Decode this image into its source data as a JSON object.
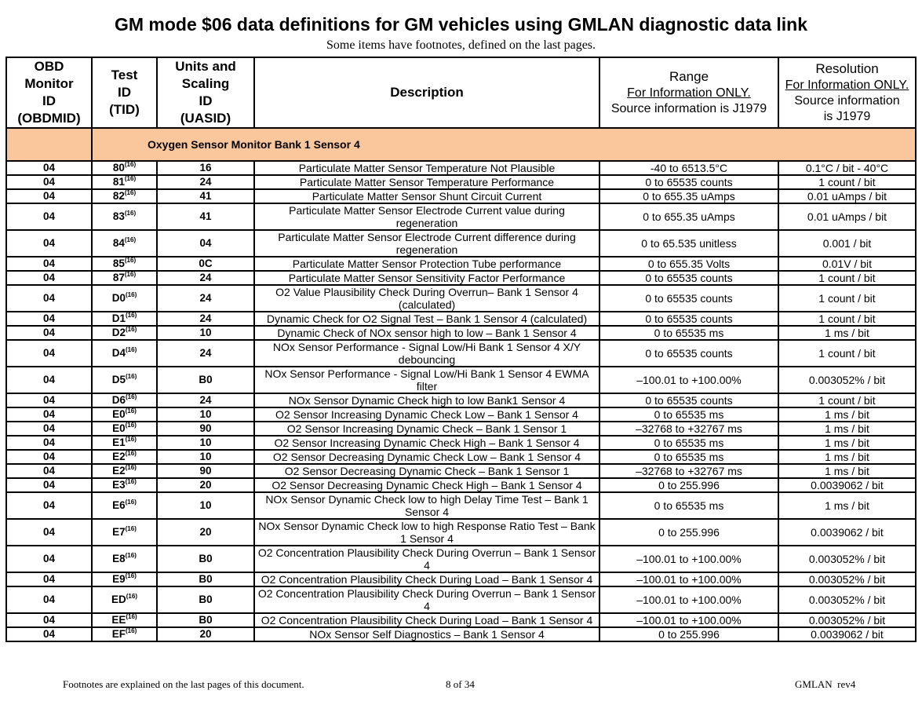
{
  "header": {
    "title": "GM mode $06 data definitions for GM vehicles using GMLAN diagnostic data link",
    "subtitle": "Some items have footnotes, defined on the last pages."
  },
  "table": {
    "columns": {
      "obdmid": [
        "OBD",
        "Monitor",
        "ID",
        "(OBDMID)"
      ],
      "tid": [
        "Test",
        "ID",
        "(TID)"
      ],
      "uasid": [
        "Units and",
        "Scaling",
        "ID",
        "(UASID)"
      ],
      "description": [
        "Description"
      ],
      "range": {
        "title": "Range",
        "note": "For Information ONLY.",
        "source": "Source information is J1979"
      },
      "resolution": {
        "title": "Resolution",
        "note": "For Information ONLY.",
        "source": "Source information is J1979"
      }
    },
    "section": "Oxygen Sensor Monitor Bank 1 Sensor 4",
    "rows": [
      [
        "04",
        "80",
        "(16)",
        "16",
        "Particulate Matter Sensor Temperature Not Plausible",
        "-40 to 6513.5°C",
        "0.1°C / bit - 40°C"
      ],
      [
        "04",
        "81",
        "(16)",
        "24",
        "Particulate Matter Sensor Temperature Performance",
        "0 to 65535 counts",
        "1 count / bit"
      ],
      [
        "04",
        "82",
        "(16)",
        "41",
        "Particulate Matter Sensor Shunt Circuit Current",
        "0 to 655.35 uAmps",
        "0.01 uAmps / bit"
      ],
      [
        "04",
        "83",
        "(16)",
        "41",
        "Particulate Matter Sensor Electrode Current value during regeneration",
        "0 to 655.35 uAmps",
        "0.01 uAmps / bit"
      ],
      [
        "04",
        "84",
        "(16)",
        "04",
        "Particulate Matter Sensor Electrode Current difference during regeneration",
        "0 to 65.535 unitless",
        "0.001 / bit"
      ],
      [
        "04",
        "85",
        "(16)",
        "0C",
        "Particulate Matter Sensor Protection Tube performance",
        "0 to 655.35 Volts",
        "0.01V / bit"
      ],
      [
        "04",
        "87",
        "(16)",
        "24",
        "Particulate Matter Sensor Sensitivity Factor Performance",
        "0 to 65535 counts",
        "1 count / bit"
      ],
      [
        "04",
        "D0",
        "(16)",
        "24",
        "O2 Value Plausibility Check During Overrun– Bank 1 Sensor 4 (calculated)",
        "0 to 65535 counts",
        "1 count / bit"
      ],
      [
        "04",
        "D1",
        "(16)",
        "24",
        "Dynamic Check for O2 Signal Test – Bank 1 Sensor 4 (calculated)",
        "0 to 65535 counts",
        "1 count / bit"
      ],
      [
        "04",
        "D2",
        "(16)",
        "10",
        "Dynamic Check of NOx sensor high to low – Bank 1 Sensor 4",
        "0 to 65535 ms",
        "1 ms / bit"
      ],
      [
        "04",
        "D4",
        "(16)",
        "24",
        "NOx Sensor Performance - Signal Low/Hi Bank 1 Sensor 4 X/Y debouncing",
        "0 to 65535 counts",
        "1 count / bit"
      ],
      [
        "04",
        "D5",
        "(16)",
        "B0",
        "NOx Sensor Performance - Signal Low/Hi Bank 1 Sensor 4 EWMA filter",
        "–100.01 to +100.00%",
        "0.003052% / bit"
      ],
      [
        "04",
        "D6",
        "(16)",
        "24",
        "NOx Sensor Dynamic Check high to low Bank1 Sensor 4",
        "0 to 65535 counts",
        "1 count / bit"
      ],
      [
        "04",
        "E0",
        "(16)",
        "10",
        "O2 Sensor Increasing Dynamic Check Low – Bank 1 Sensor 4",
        "0 to 65535 ms",
        "1 ms / bit"
      ],
      [
        "04",
        "E0",
        "(16)",
        "90",
        "O2 Sensor Increasing Dynamic Check – Bank 1 Sensor 1",
        "–32768 to +32767 ms",
        "1 ms / bit"
      ],
      [
        "04",
        "E1",
        "(16)",
        "10",
        "O2 Sensor Increasing Dynamic Check High – Bank 1 Sensor 4",
        "0 to 65535 ms",
        "1 ms / bit"
      ],
      [
        "04",
        "E2",
        "(16)",
        "10",
        "O2 Sensor Decreasing Dynamic Check Low – Bank 1 Sensor 4",
        "0 to 65535 ms",
        "1 ms / bit"
      ],
      [
        "04",
        "E2",
        "(16)",
        "90",
        "O2 Sensor Decreasing Dynamic Check – Bank 1 Sensor 1",
        "–32768 to +32767 ms",
        "1 ms / bit"
      ],
      [
        "04",
        "E3",
        "(16)",
        "20",
        "O2 Sensor Decreasing Dynamic Check High – Bank 1 Sensor 4",
        "0 to 255.996",
        "0.0039062 / bit"
      ],
      [
        "04",
        "E6",
        "(16)",
        "10",
        "NOx Sensor Dynamic Check low to high Delay Time Test – Bank 1 Sensor 4",
        "0 to 65535 ms",
        "1 ms / bit"
      ],
      [
        "04",
        "E7",
        "(16)",
        "20",
        "NOx Sensor Dynamic Check low to high Response Ratio Test – Bank 1 Sensor 4",
        "0 to 255.996",
        "0.0039062 / bit"
      ],
      [
        "04",
        "E8",
        "(16)",
        "B0",
        "O2 Concentration Plausibility Check During Overrun – Bank 1 Sensor 4",
        "–100.01 to +100.00%",
        "0.003052% / bit"
      ],
      [
        "04",
        "E9",
        "(16)",
        "B0",
        "O2 Concentration Plausibility Check During Load – Bank 1 Sensor 4",
        "–100.01 to +100.00%",
        "0.003052% / bit"
      ],
      [
        "04",
        "ED",
        "(16)",
        "B0",
        "O2 Concentration Plausibility Check During Overrun – Bank 1 Sensor 4",
        "–100.01 to +100.00%",
        "0.003052% / bit"
      ],
      [
        "04",
        "EE",
        "(16)",
        "B0",
        "O2 Concentration Plausibility Check During Load – Bank 1 Sensor 4",
        "–100.01 to +100.00%",
        "0.003052% / bit"
      ],
      [
        "04",
        "EF",
        "(16)",
        "20",
        "NOx Sensor Self Diagnostics – Bank 1 Sensor 4",
        "0 to 255.996",
        "0.0039062 / bit"
      ]
    ]
  },
  "footer": {
    "note": "Footnotes are explained on the last pages of this document.",
    "page": "8 of 34",
    "document": "GMLAN  rev4"
  }
}
